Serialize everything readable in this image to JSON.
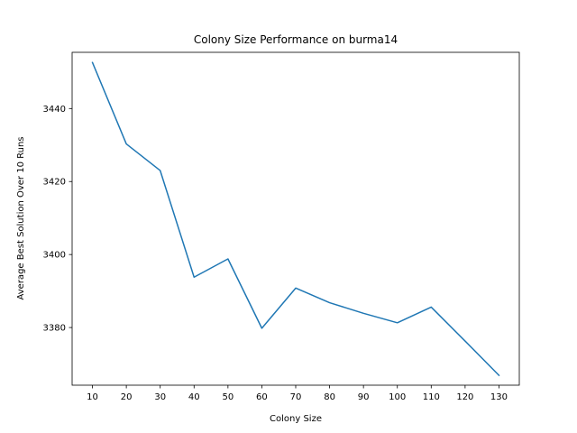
{
  "chart_data": {
    "type": "line",
    "title": "Colony Size Performance on burma14",
    "xlabel": "Colony Size",
    "ylabel": "Average Best Solution Over 10 Runs",
    "x": [
      10,
      20,
      30,
      40,
      50,
      60,
      70,
      80,
      90,
      100,
      110,
      120,
      130
    ],
    "series": [
      {
        "values": [
          3452.6,
          3430.3,
          3423.0,
          3393.8,
          3398.8,
          3379.8,
          3390.8,
          3386.8,
          3383.9,
          3381.3,
          3385.6,
          3376.3,
          3366.9
        ],
        "color": "#1f77b4"
      }
    ],
    "xticks": [
      10,
      20,
      30,
      40,
      50,
      60,
      70,
      80,
      90,
      100,
      110,
      120,
      130
    ],
    "yticks": [
      3380,
      3400,
      3420,
      3440
    ],
    "xlim": [
      4,
      136
    ],
    "ylim": [
      3364.2,
      3455.4
    ],
    "grid": false,
    "legend": "none"
  }
}
